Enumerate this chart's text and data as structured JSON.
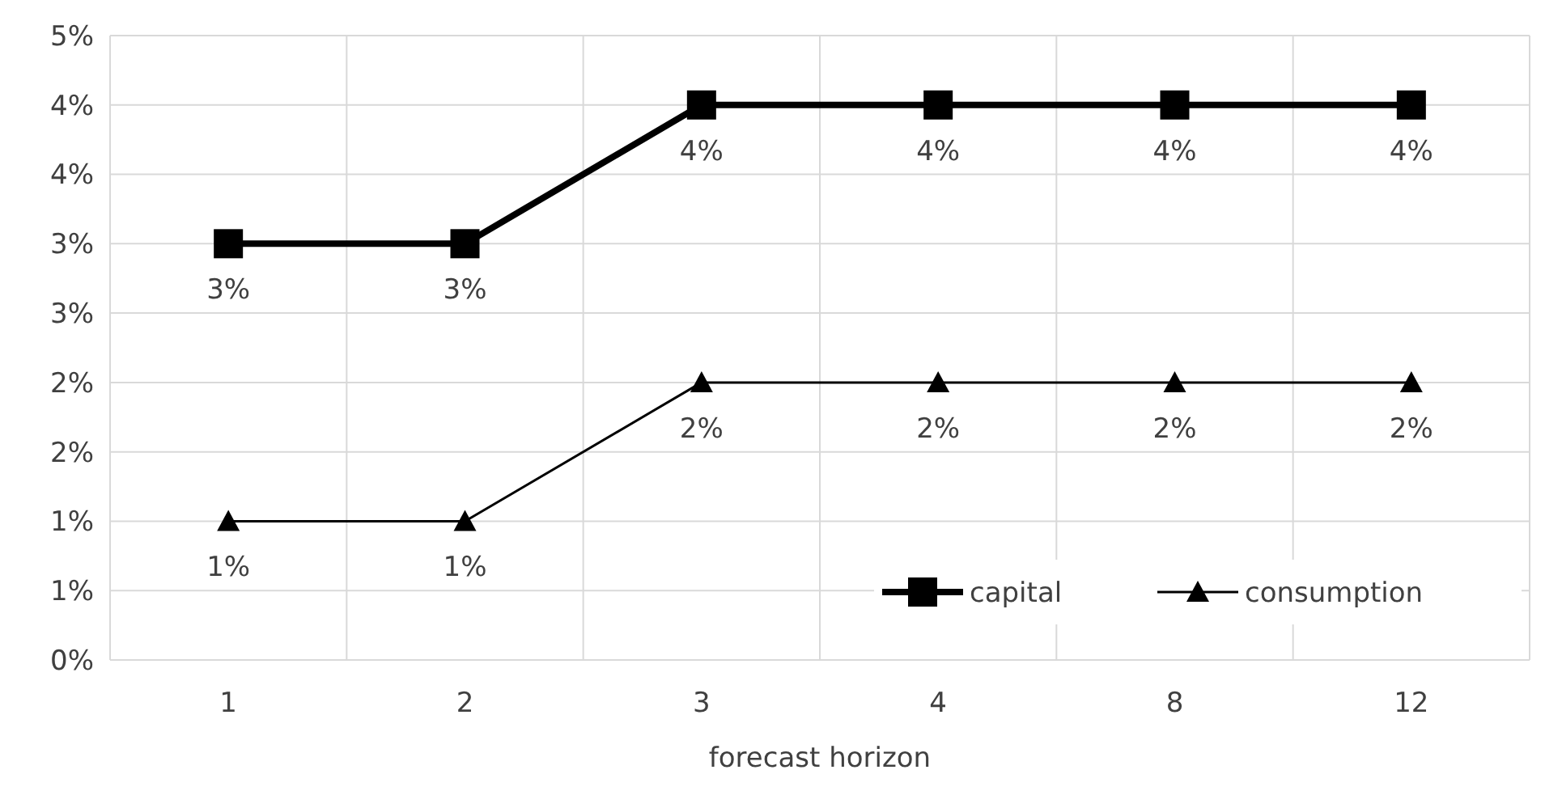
{
  "chart_data": {
    "type": "line",
    "xlabel": "forecast horizon",
    "categories": [
      "1",
      "2",
      "3",
      "4",
      "8",
      "12"
    ],
    "series": [
      {
        "name": "capital",
        "color": "#000000",
        "marker": "square",
        "values": [
          3,
          3,
          4,
          4,
          4,
          4
        ],
        "value_labels": [
          "3%",
          "3%",
          "4%",
          "4%",
          "4%",
          "4%"
        ]
      },
      {
        "name": "consumption",
        "color": "#000000",
        "marker": "triangle",
        "values": [
          1,
          1,
          2,
          2,
          2,
          2
        ],
        "value_labels": [
          "1%",
          "1%",
          "2%",
          "2%",
          "2%",
          "2%"
        ]
      }
    ],
    "ylim": [
      0,
      4.5
    ],
    "yticks": [
      {
        "value": 0,
        "label": "0%"
      },
      {
        "value": 0.5,
        "label": "1%"
      },
      {
        "value": 1,
        "label": "1%"
      },
      {
        "value": 1.5,
        "label": "2%"
      },
      {
        "value": 2,
        "label": "2%"
      },
      {
        "value": 2.5,
        "label": "3%"
      },
      {
        "value": 3,
        "label": "3%"
      },
      {
        "value": 3.5,
        "label": "4%"
      },
      {
        "value": 4,
        "label": "4%"
      },
      {
        "value": 4.5,
        "label": "5%"
      }
    ],
    "grid": true,
    "legend": "bottom right"
  }
}
